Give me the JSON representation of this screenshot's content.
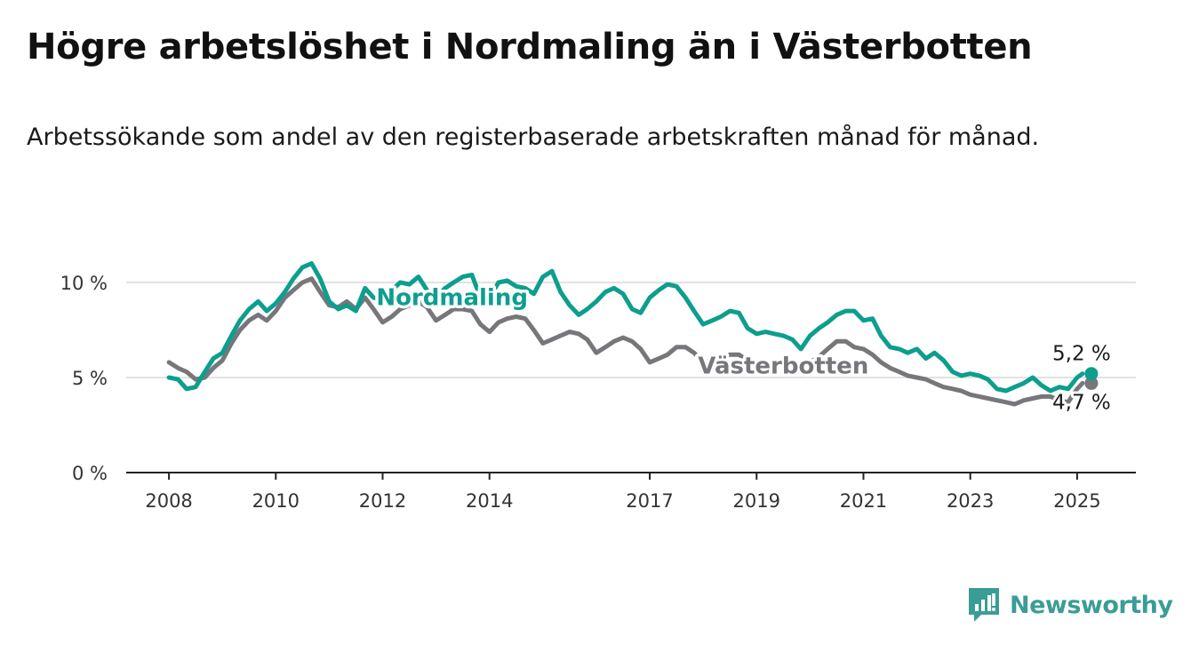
{
  "header": {
    "title": "Högre arbetslöshet i Nordmaling än i Västerbotten",
    "subtitle": "Arbetssökande som andel av den registerbaserade arbetskraften månad för månad."
  },
  "brand": {
    "name": "Newsworthy",
    "color": "#3a9d95"
  },
  "chart_data": {
    "type": "line",
    "ylim": [
      0,
      12
    ],
    "xlim": [
      2007.2,
      2026.1
    ],
    "y_ticks": [
      {
        "value": 0,
        "label": "0 %"
      },
      {
        "value": 5,
        "label": "5 %"
      },
      {
        "value": 10,
        "label": "10 %"
      }
    ],
    "x_ticks": [
      {
        "value": 2008,
        "label": "2008"
      },
      {
        "value": 2010,
        "label": "2010"
      },
      {
        "value": 2012,
        "label": "2012"
      },
      {
        "value": 2014,
        "label": "2014"
      },
      {
        "value": 2017,
        "label": "2017"
      },
      {
        "value": 2019,
        "label": "2019"
      },
      {
        "value": 2021,
        "label": "2021"
      },
      {
        "value": 2023,
        "label": "2023"
      },
      {
        "value": 2025,
        "label": "2025"
      }
    ],
    "grid": true,
    "series": [
      {
        "name": "Västerbotten",
        "color": "#77767b",
        "end_label": "4,7 %",
        "points": [
          [
            2008.0,
            5.8
          ],
          [
            2008.17,
            5.5
          ],
          [
            2008.33,
            5.3
          ],
          [
            2008.5,
            4.9
          ],
          [
            2008.67,
            5.0
          ],
          [
            2008.83,
            5.5
          ],
          [
            2009.0,
            5.9
          ],
          [
            2009.17,
            6.8
          ],
          [
            2009.33,
            7.5
          ],
          [
            2009.5,
            8.0
          ],
          [
            2009.67,
            8.3
          ],
          [
            2009.83,
            8.0
          ],
          [
            2010.0,
            8.5
          ],
          [
            2010.17,
            9.2
          ],
          [
            2010.33,
            9.6
          ],
          [
            2010.5,
            10.0
          ],
          [
            2010.67,
            10.2
          ],
          [
            2010.83,
            9.5
          ],
          [
            2011.0,
            8.8
          ],
          [
            2011.17,
            8.7
          ],
          [
            2011.33,
            9.0
          ],
          [
            2011.5,
            8.6
          ],
          [
            2011.67,
            9.2
          ],
          [
            2011.83,
            8.6
          ],
          [
            2012.0,
            7.9
          ],
          [
            2012.17,
            8.2
          ],
          [
            2012.33,
            8.6
          ],
          [
            2012.5,
            8.8
          ],
          [
            2012.67,
            9.0
          ],
          [
            2012.83,
            8.7
          ],
          [
            2013.0,
            8.0
          ],
          [
            2013.17,
            8.3
          ],
          [
            2013.33,
            8.6
          ],
          [
            2013.5,
            8.6
          ],
          [
            2013.67,
            8.5
          ],
          [
            2013.83,
            7.8
          ],
          [
            2014.0,
            7.4
          ],
          [
            2014.17,
            7.9
          ],
          [
            2014.33,
            8.1
          ],
          [
            2014.5,
            8.2
          ],
          [
            2014.67,
            8.1
          ],
          [
            2014.83,
            7.5
          ],
          [
            2015.0,
            6.8
          ],
          [
            2015.17,
            7.0
          ],
          [
            2015.33,
            7.2
          ],
          [
            2015.5,
            7.4
          ],
          [
            2015.67,
            7.3
          ],
          [
            2015.83,
            7.0
          ],
          [
            2016.0,
            6.3
          ],
          [
            2016.17,
            6.6
          ],
          [
            2016.33,
            6.9
          ],
          [
            2016.5,
            7.1
          ],
          [
            2016.67,
            6.9
          ],
          [
            2016.83,
            6.5
          ],
          [
            2017.0,
            5.8
          ],
          [
            2017.17,
            6.0
          ],
          [
            2017.33,
            6.2
          ],
          [
            2017.5,
            6.6
          ],
          [
            2017.67,
            6.6
          ],
          [
            2017.83,
            6.3
          ],
          [
            2018.0,
            5.8
          ],
          [
            2018.17,
            5.9
          ],
          [
            2018.33,
            6.0
          ],
          [
            2018.5,
            6.2
          ],
          [
            2018.67,
            6.2
          ],
          [
            2018.83,
            5.9
          ],
          [
            2019.0,
            5.4
          ],
          [
            2019.17,
            5.5
          ],
          [
            2019.33,
            5.6
          ],
          [
            2019.5,
            5.8
          ],
          [
            2019.67,
            5.8
          ],
          [
            2019.83,
            5.6
          ],
          [
            2020.0,
            5.8
          ],
          [
            2020.17,
            6.1
          ],
          [
            2020.33,
            6.5
          ],
          [
            2020.5,
            6.9
          ],
          [
            2020.67,
            6.9
          ],
          [
            2020.83,
            6.6
          ],
          [
            2021.0,
            6.5
          ],
          [
            2021.17,
            6.2
          ],
          [
            2021.33,
            5.8
          ],
          [
            2021.5,
            5.5
          ],
          [
            2021.67,
            5.3
          ],
          [
            2021.83,
            5.1
          ],
          [
            2022.0,
            5.0
          ],
          [
            2022.17,
            4.9
          ],
          [
            2022.33,
            4.7
          ],
          [
            2022.5,
            4.5
          ],
          [
            2022.67,
            4.4
          ],
          [
            2022.83,
            4.3
          ],
          [
            2023.0,
            4.1
          ],
          [
            2023.17,
            4.0
          ],
          [
            2023.33,
            3.9
          ],
          [
            2023.5,
            3.8
          ],
          [
            2023.67,
            3.7
          ],
          [
            2023.83,
            3.6
          ],
          [
            2024.0,
            3.8
          ],
          [
            2024.17,
            3.9
          ],
          [
            2024.33,
            4.0
          ],
          [
            2024.5,
            4.0
          ],
          [
            2024.67,
            3.8
          ],
          [
            2024.83,
            3.7
          ],
          [
            2025.0,
            4.4
          ],
          [
            2025.1,
            4.7
          ]
        ]
      },
      {
        "name": "Nordmaling",
        "color": "#0d9e8e",
        "end_label": "5,2 %",
        "points": [
          [
            2008.0,
            5.0
          ],
          [
            2008.17,
            4.9
          ],
          [
            2008.33,
            4.4
          ],
          [
            2008.5,
            4.5
          ],
          [
            2008.67,
            5.3
          ],
          [
            2008.83,
            6.0
          ],
          [
            2009.0,
            6.3
          ],
          [
            2009.17,
            7.2
          ],
          [
            2009.33,
            8.0
          ],
          [
            2009.5,
            8.6
          ],
          [
            2009.67,
            9.0
          ],
          [
            2009.83,
            8.5
          ],
          [
            2010.0,
            8.9
          ],
          [
            2010.17,
            9.5
          ],
          [
            2010.33,
            10.2
          ],
          [
            2010.5,
            10.8
          ],
          [
            2010.67,
            11.0
          ],
          [
            2010.83,
            10.2
          ],
          [
            2011.0,
            9.0
          ],
          [
            2011.17,
            8.6
          ],
          [
            2011.33,
            8.8
          ],
          [
            2011.5,
            8.5
          ],
          [
            2011.67,
            9.7
          ],
          [
            2011.83,
            9.2
          ],
          [
            2012.0,
            9.1
          ],
          [
            2012.17,
            9.6
          ],
          [
            2012.33,
            10.0
          ],
          [
            2012.5,
            9.9
          ],
          [
            2012.67,
            10.3
          ],
          [
            2012.83,
            9.6
          ],
          [
            2013.0,
            9.2
          ],
          [
            2013.17,
            9.7
          ],
          [
            2013.33,
            10.0
          ],
          [
            2013.5,
            10.3
          ],
          [
            2013.67,
            10.4
          ],
          [
            2013.83,
            9.2
          ],
          [
            2014.0,
            9.2
          ],
          [
            2014.17,
            10.0
          ],
          [
            2014.33,
            10.1
          ],
          [
            2014.5,
            9.8
          ],
          [
            2014.67,
            9.7
          ],
          [
            2014.83,
            9.4
          ],
          [
            2015.0,
            10.3
          ],
          [
            2015.17,
            10.6
          ],
          [
            2015.33,
            9.5
          ],
          [
            2015.5,
            8.8
          ],
          [
            2015.67,
            8.3
          ],
          [
            2015.83,
            8.6
          ],
          [
            2016.0,
            9.0
          ],
          [
            2016.17,
            9.5
          ],
          [
            2016.33,
            9.7
          ],
          [
            2016.5,
            9.4
          ],
          [
            2016.67,
            8.6
          ],
          [
            2016.83,
            8.4
          ],
          [
            2017.0,
            9.2
          ],
          [
            2017.17,
            9.6
          ],
          [
            2017.33,
            9.9
          ],
          [
            2017.5,
            9.8
          ],
          [
            2017.67,
            9.2
          ],
          [
            2017.83,
            8.5
          ],
          [
            2018.0,
            7.8
          ],
          [
            2018.17,
            8.0
          ],
          [
            2018.33,
            8.2
          ],
          [
            2018.5,
            8.5
          ],
          [
            2018.67,
            8.4
          ],
          [
            2018.83,
            7.6
          ],
          [
            2019.0,
            7.3
          ],
          [
            2019.17,
            7.4
          ],
          [
            2019.33,
            7.3
          ],
          [
            2019.5,
            7.2
          ],
          [
            2019.67,
            7.0
          ],
          [
            2019.83,
            6.5
          ],
          [
            2020.0,
            7.2
          ],
          [
            2020.17,
            7.6
          ],
          [
            2020.33,
            7.9
          ],
          [
            2020.5,
            8.3
          ],
          [
            2020.67,
            8.5
          ],
          [
            2020.83,
            8.5
          ],
          [
            2021.0,
            8.0
          ],
          [
            2021.17,
            8.1
          ],
          [
            2021.33,
            7.2
          ],
          [
            2021.5,
            6.6
          ],
          [
            2021.67,
            6.5
          ],
          [
            2021.83,
            6.3
          ],
          [
            2022.0,
            6.5
          ],
          [
            2022.17,
            6.0
          ],
          [
            2022.33,
            6.3
          ],
          [
            2022.5,
            5.9
          ],
          [
            2022.67,
            5.3
          ],
          [
            2022.83,
            5.1
          ],
          [
            2023.0,
            5.2
          ],
          [
            2023.17,
            5.1
          ],
          [
            2023.33,
            4.9
          ],
          [
            2023.5,
            4.4
          ],
          [
            2023.67,
            4.3
          ],
          [
            2023.83,
            4.5
          ],
          [
            2024.0,
            4.7
          ],
          [
            2024.17,
            5.0
          ],
          [
            2024.33,
            4.6
          ],
          [
            2024.5,
            4.3
          ],
          [
            2024.67,
            4.5
          ],
          [
            2024.83,
            4.4
          ],
          [
            2025.0,
            5.0
          ],
          [
            2025.1,
            5.2
          ]
        ]
      }
    ]
  }
}
